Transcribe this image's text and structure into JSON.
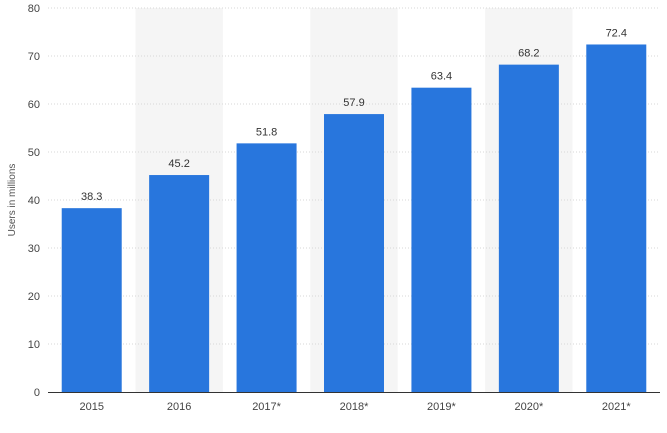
{
  "chart_data": {
    "type": "bar",
    "categories": [
      "2015",
      "2016",
      "2017*",
      "2018*",
      "2019*",
      "2020*",
      "2021*"
    ],
    "series": [
      {
        "values": [
          38.3,
          45.2,
          51.8,
          57.9,
          63.4,
          68.2,
          72.4
        ]
      }
    ],
    "value_labels": [
      "38.3",
      "45.2",
      "51.8",
      "57.9",
      "63.4",
      "68.2",
      "72.4"
    ],
    "title": "",
    "xlabel": "",
    "ylabel": "Users in millions",
    "ylim": [
      0,
      80
    ],
    "yticks": [
      "0",
      "10",
      "20",
      "30",
      "40",
      "50",
      "60",
      "70",
      "80"
    ],
    "grid": true,
    "legend": "none",
    "colors": {
      "bar": "#2876dd",
      "band": "#f5f5f5",
      "grid": "#d7d7d7",
      "axis": "#333333"
    }
  }
}
